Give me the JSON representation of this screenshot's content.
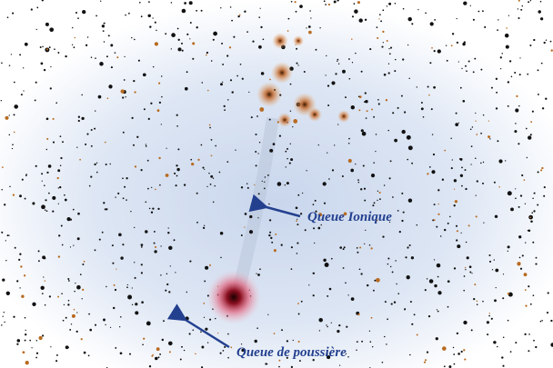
{
  "annotations": [
    {
      "label": "Queue Ionique"
    },
    {
      "label": "Queue de poussière"
    }
  ]
}
